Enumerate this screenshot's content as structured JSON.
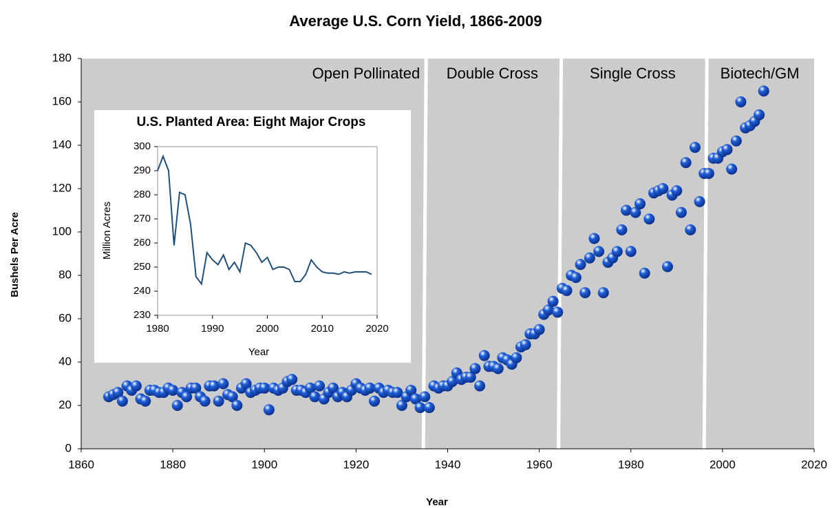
{
  "chart_data": [
    {
      "type": "scatter",
      "title": "Average U.S. Corn Yield, 1866-2009",
      "xlabel": "Year",
      "ylabel": "Bushels Per Acre",
      "color": "#1f5fd8",
      "xlim": [
        1860,
        2020
      ],
      "xticks": [
        1860,
        1880,
        1900,
        1920,
        1940,
        1960,
        1980,
        2000,
        2020
      ],
      "ylim": [
        0,
        180
      ],
      "yticks": [
        0,
        20,
        40,
        60,
        80,
        100,
        120,
        140,
        160,
        180
      ],
      "eras": [
        {
          "label": "Open Pollinated",
          "start": 1860,
          "end": 1935
        },
        {
          "label": "Double Cross",
          "start": 1935,
          "end": 1964.5
        },
        {
          "label": "Single Cross",
          "start": 1964.5,
          "end": 1996.3
        },
        {
          "label": "Biotech/GM",
          "start": 1996.3,
          "end": 2020
        }
      ],
      "x": [
        1866,
        1867,
        1868,
        1869,
        1870,
        1871,
        1872,
        1873,
        1874,
        1875,
        1876,
        1877,
        1878,
        1879,
        1880,
        1881,
        1882,
        1883,
        1884,
        1885,
        1886,
        1887,
        1888,
        1889,
        1890,
        1891,
        1892,
        1893,
        1894,
        1895,
        1896,
        1897,
        1898,
        1899,
        1900,
        1901,
        1902,
        1903,
        1904,
        1905,
        1906,
        1907,
        1908,
        1909,
        1910,
        1911,
        1912,
        1913,
        1914,
        1915,
        1916,
        1917,
        1918,
        1919,
        1920,
        1921,
        1922,
        1923,
        1924,
        1925,
        1926,
        1927,
        1928,
        1929,
        1930,
        1931,
        1932,
        1933,
        1934,
        1935,
        1936,
        1937,
        1938,
        1939,
        1940,
        1941,
        1942,
        1943,
        1944,
        1945,
        1946,
        1947,
        1948,
        1949,
        1950,
        1951,
        1952,
        1953,
        1954,
        1955,
        1956,
        1957,
        1958,
        1959,
        1960,
        1961,
        1962,
        1963,
        1964,
        1965,
        1966,
        1967,
        1968,
        1969,
        1970,
        1971,
        1972,
        1973,
        1974,
        1975,
        1976,
        1977,
        1978,
        1979,
        1980,
        1981,
        1982,
        1983,
        1984,
        1985,
        1986,
        1987,
        1988,
        1989,
        1990,
        1991,
        1992,
        1993,
        1994,
        1995,
        1996,
        1997,
        1998,
        1999,
        2000,
        2001,
        2002,
        2003,
        2004,
        2005,
        2006,
        2007,
        2008,
        2009
      ],
      "values": [
        24,
        25,
        26,
        22,
        29,
        27,
        29,
        23,
        22,
        27,
        27,
        26,
        26,
        28,
        27,
        20,
        26,
        24,
        28,
        28,
        24,
        22,
        29,
        29,
        22,
        30,
        25,
        24,
        20,
        28,
        30,
        26,
        27,
        28,
        28,
        18,
        28,
        27,
        28,
        31,
        32,
        27,
        27,
        26,
        28,
        24,
        29,
        23,
        26,
        28,
        24,
        26,
        24,
        27,
        30,
        28,
        27,
        28,
        22,
        28,
        26,
        27,
        26,
        26,
        20,
        24,
        27,
        23,
        19,
        24,
        19,
        29,
        28,
        29,
        29,
        31,
        35,
        32,
        33,
        33,
        37,
        29,
        43,
        38,
        38,
        37,
        42,
        41,
        39,
        42,
        47,
        48,
        53,
        53,
        55,
        62,
        64,
        68,
        63,
        74,
        73,
        80,
        79,
        85,
        72,
        88,
        97,
        91,
        72,
        86,
        88,
        91,
        101,
        110,
        91,
        109,
        113,
        81,
        106,
        118,
        119,
        120,
        84,
        117,
        119,
        109,
        132,
        101,
        139,
        114,
        127,
        127,
        134,
        134,
        137,
        138,
        129,
        142,
        160,
        148,
        149,
        151,
        154,
        165
      ]
    },
    {
      "type": "line",
      "title": "U.S. Planted Area: Eight Major Crops",
      "xlabel": "Year",
      "ylabel": "Million Acres",
      "color": "#1f4e79",
      "xlim": [
        1980,
        2020
      ],
      "xticks": [
        1980,
        1990,
        2000,
        2010,
        2020
      ],
      "ylim": [
        230,
        300
      ],
      "yticks": [
        230,
        240,
        250,
        260,
        270,
        280,
        290,
        300
      ],
      "x": [
        1980,
        1981,
        1982,
        1983,
        1984,
        1985,
        1986,
        1987,
        1988,
        1989,
        1990,
        1991,
        1992,
        1993,
        1994,
        1995,
        1996,
        1997,
        1998,
        1999,
        2000,
        2001,
        2002,
        2003,
        2004,
        2005,
        2006,
        2007,
        2008,
        2009,
        2010,
        2011,
        2012,
        2013,
        2014,
        2015,
        2016,
        2017,
        2018,
        2019
      ],
      "values": [
        290,
        296,
        290,
        259,
        281,
        280,
        268,
        246,
        243,
        256,
        253,
        251,
        255,
        249,
        252,
        248,
        260,
        259,
        256,
        252,
        254,
        249,
        250,
        250,
        249,
        244,
        244,
        247,
        253,
        250,
        248,
        247.5,
        247.5,
        247,
        248,
        247.5,
        248,
        248,
        248,
        247
      ]
    }
  ]
}
